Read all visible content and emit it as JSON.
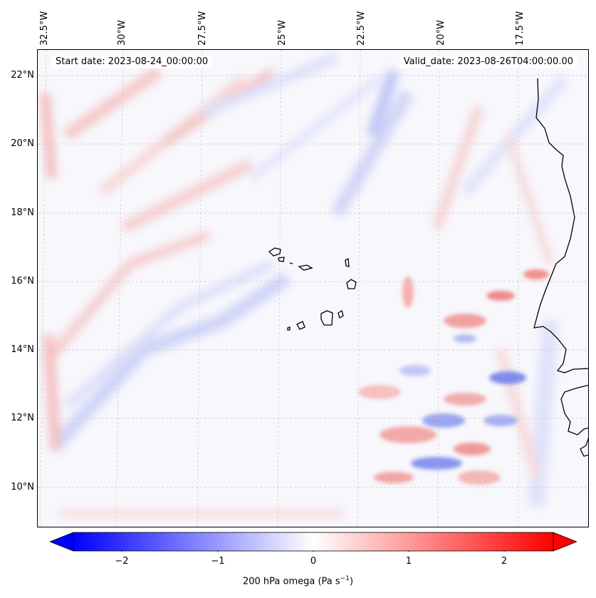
{
  "header": {
    "start_date": "Start date: 2023-08-24_00:00:00",
    "valid_date": "Valid_date: 2023-08-26T04:00:00.00"
  },
  "axes": {
    "lon_labels": [
      "32.5°W",
      "30°W",
      "27.5°W",
      "25°W",
      "22.5°W",
      "20°W",
      "17.5°W"
    ],
    "lat_labels": [
      "22°N",
      "20°N",
      "18°N",
      "16°N",
      "14°N",
      "12°N",
      "10°N"
    ]
  },
  "colorbar": {
    "ticks": [
      "−2",
      "−1",
      "0",
      "1",
      "2"
    ],
    "label_main": "200 hPa omega (Pa s",
    "label_sup": "−1",
    "label_end": ")",
    "range": [
      -2.7,
      2.7
    ],
    "colors": {
      "neg": "#0000ff",
      "mid": "#ffffff",
      "pos": "#ff0000"
    }
  },
  "chart_data": {
    "type": "heatmap",
    "title": "",
    "variable": "200 hPa omega",
    "units": "Pa s^-1",
    "lon_ticks_deg": [
      -32.5,
      -30,
      -27.5,
      -25,
      -22.5,
      -20,
      -17.5
    ],
    "lat_ticks_deg": [
      22,
      20,
      18,
      16,
      14,
      12,
      10
    ],
    "value_range": [
      -2.7,
      2.7
    ],
    "colormap": "bwr"
  }
}
